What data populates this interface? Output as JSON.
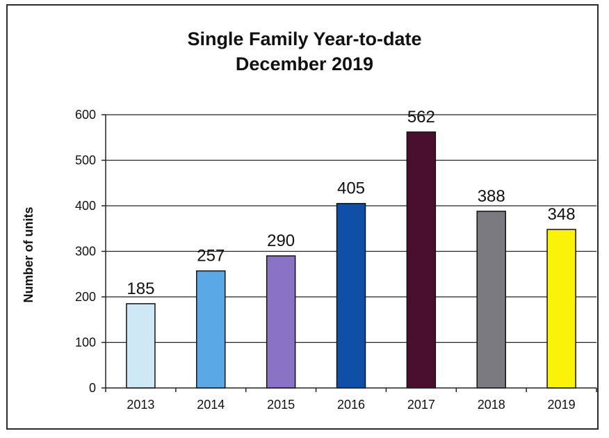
{
  "chart_data": {
    "type": "bar",
    "title": "Single Family Year-to-date",
    "subtitle": "December 2019",
    "xlabel": "",
    "ylabel": "Number of units",
    "categories": [
      "2013",
      "2014",
      "2015",
      "2016",
      "2017",
      "2018",
      "2019"
    ],
    "values": [
      185,
      257,
      290,
      405,
      562,
      388,
      348
    ],
    "data_labels": [
      "185",
      "257",
      "290",
      "405",
      "562",
      "388",
      "348"
    ],
    "colors": [
      "#cfe8f6",
      "#5aa9e6",
      "#8a72c4",
      "#0f4fa8",
      "#4a0f2e",
      "#7a7a80",
      "#fbf20a"
    ],
    "ylim": [
      0,
      600
    ],
    "yticks": [
      0,
      100,
      200,
      300,
      400,
      500,
      600
    ],
    "grid": true,
    "legend": "none"
  }
}
